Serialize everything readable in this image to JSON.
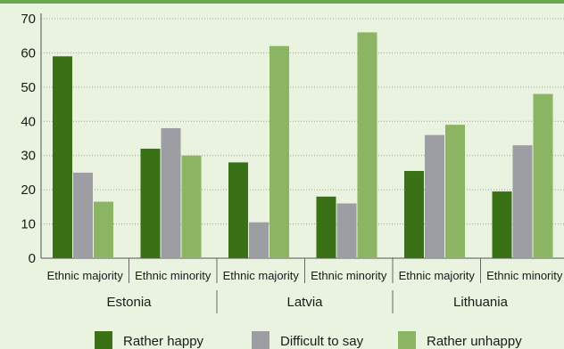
{
  "chart_data": {
    "type": "bar",
    "title": "",
    "xlabel": "",
    "ylabel": "",
    "ylim": [
      0,
      70
    ],
    "yticks": [
      0,
      10,
      20,
      30,
      40,
      50,
      60,
      70
    ],
    "grid": true,
    "legend_position": "bottom",
    "groups": [
      "Estonia",
      "Latvia",
      "Lithuania"
    ],
    "categories": [
      "Ethnic majority",
      "Ethnic minority",
      "Ethnic majority",
      "Ethnic minority",
      "Ethnic majority",
      "Ethnic minority"
    ],
    "series": [
      {
        "name": "Rather happy",
        "color": "#3a7116",
        "values": [
          59,
          32,
          28,
          18,
          25.5,
          19.5
        ]
      },
      {
        "name": "Difficult to say",
        "color": "#9d9ea3",
        "values": [
          25,
          38,
          10.5,
          16,
          36,
          33
        ]
      },
      {
        "name": "Rather unhappy",
        "color": "#8cb563",
        "values": [
          16.5,
          30,
          62,
          66,
          39,
          48
        ]
      }
    ]
  }
}
